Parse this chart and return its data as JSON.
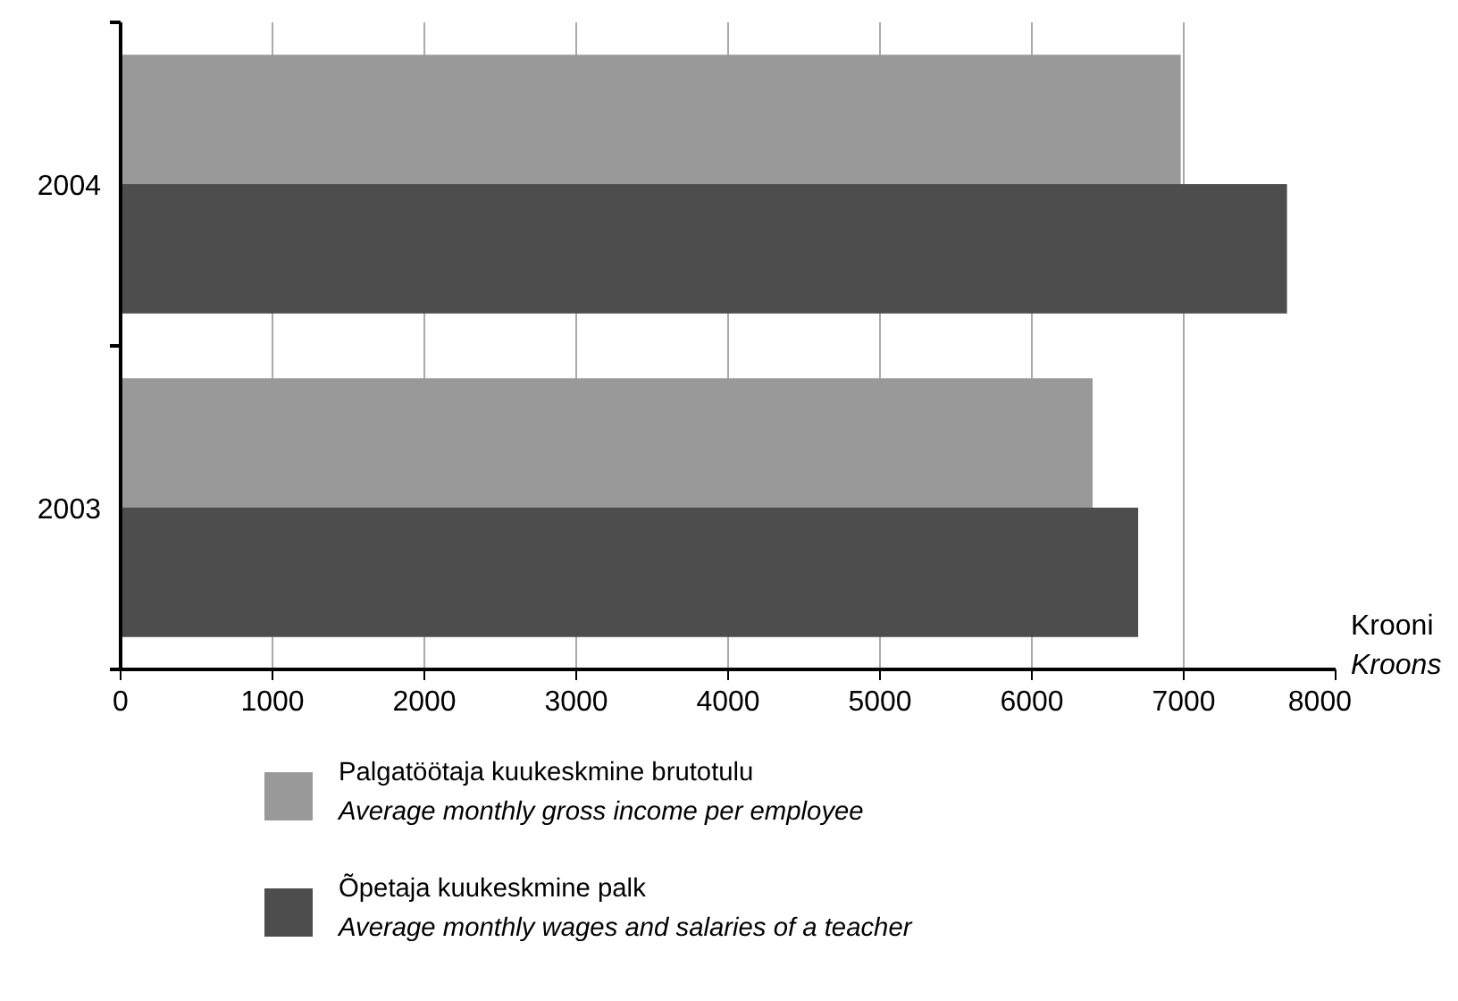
{
  "chart_data": {
    "type": "bar",
    "orientation": "horizontal",
    "categories": [
      "2004",
      "2003"
    ],
    "xlabel": "Krooni\nKroons",
    "series": [
      {
        "name": "Palgatöötaja kuukeskmine brutotulu\nAverage monthly gross income per employee",
        "color": "#999999",
        "values": [
          6980,
          6400
        ]
      },
      {
        "name": "Õpetaja kuukeskmine palk\nAverage monthly wages and salaries of a teacher",
        "color": "#4d4d4d",
        "values": [
          7680,
          6700
        ]
      }
    ],
    "xlim": [
      0,
      8000
    ],
    "xticks": [
      0,
      1000,
      2000,
      3000,
      4000,
      5000,
      6000,
      7000,
      8000
    ],
    "grid": "x",
    "legend": "bottom"
  }
}
